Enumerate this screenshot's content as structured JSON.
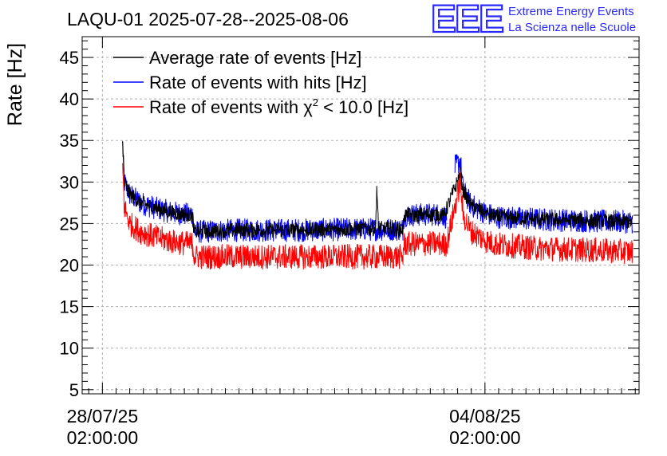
{
  "header": {
    "title": "LAQU-01 2025-07-28--2025-08-06",
    "logo_letters": "EEE",
    "logo_line1": "Extreme Energy Events",
    "logo_line2": "La Scienza nelle Scuole"
  },
  "colors": {
    "average": "#000000",
    "hits": "#0000ff",
    "chi2": "#ff0000",
    "grid": "#b0b0b0",
    "logo": "#2a2aff"
  },
  "chart_data": {
    "type": "line",
    "title": "LAQU-01 2025-07-28--2025-08-06",
    "xlabel": "",
    "ylabel": "Rate [Hz]",
    "x_unit": "days since 2025-07-28 02:00:00",
    "xlim": [
      -0.37,
      9.82
    ],
    "ylim": [
      4.5,
      47.5
    ],
    "yticks": [
      5,
      10,
      15,
      20,
      25,
      30,
      35,
      40,
      45
    ],
    "xticks": [
      {
        "x": 0,
        "line1": "28/07/25",
        "line2": "02:00:00"
      },
      {
        "x": 7,
        "line1": "04/08/25",
        "line2": "02:00:00"
      }
    ],
    "grid": true,
    "legend": {
      "position": "top-left",
      "entries": [
        {
          "key": "average",
          "label": "Average rate of events [Hz]"
        },
        {
          "key": "hits",
          "label": "Rate of events with hits [Hz]"
        },
        {
          "key": "chi2",
          "label_pre": "Rate of events with ",
          "label_symbol": "χ",
          "label_sup": "2",
          "label_post": " < 10.0 [Hz]"
        }
      ]
    },
    "series": [
      {
        "key": "hits",
        "name": "Rate of events with hits [Hz]",
        "x": [
          0.37,
          0.4,
          0.5,
          0.7,
          1.0,
          1.3,
          1.65,
          1.68,
          2.5,
          3.5,
          4.5,
          5.5,
          5.52,
          6.1,
          6.25,
          6.3,
          6.4,
          6.45,
          6.55,
          6.6,
          6.75,
          7.0,
          7.2,
          8.0,
          9.0,
          9.7
        ],
        "y": [
          34.5,
          30.0,
          28.5,
          27.5,
          26.8,
          26.3,
          26.0,
          24.0,
          24.2,
          24.2,
          24.3,
          24.3,
          26.0,
          26.1,
          26.0,
          25.6,
          null,
          31.8,
          32.6,
          29.0,
          27.2,
          26.3,
          25.8,
          25.5,
          25.3,
          25.2
        ],
        "noise": 1.4
      },
      {
        "key": "average",
        "name": "Average rate of events [Hz]",
        "x": [
          0.37,
          0.4,
          0.5,
          0.7,
          1.0,
          1.3,
          1.65,
          1.68,
          2.5,
          3.5,
          4.5,
          5.0,
          5.02,
          5.05,
          5.5,
          5.52,
          6.1,
          6.25,
          6.3,
          6.55,
          6.6,
          6.75,
          7.0,
          7.2,
          8.0,
          9.0,
          9.7
        ],
        "y": [
          34.5,
          30.0,
          28.5,
          27.5,
          26.8,
          26.3,
          26.0,
          24.0,
          24.2,
          24.2,
          24.3,
          24.4,
          29.5,
          24.4,
          24.3,
          26.0,
          26.1,
          26.0,
          26.8,
          31.0,
          29.0,
          27.2,
          26.3,
          25.8,
          25.5,
          25.3,
          25.2
        ],
        "noise": 0.9
      },
      {
        "key": "chi2",
        "name": "Rate of events with chi2 < 10.0 [Hz]",
        "x": [
          0.37,
          0.4,
          0.5,
          0.7,
          1.0,
          1.3,
          1.65,
          1.68,
          2.5,
          3.5,
          4.5,
          5.5,
          5.52,
          6.1,
          6.25,
          6.3,
          6.55,
          6.6,
          6.75,
          7.0,
          7.2,
          8.0,
          9.0,
          9.7
        ],
        "y": [
          32.0,
          27.0,
          25.0,
          24.0,
          23.3,
          22.8,
          22.5,
          21.0,
          21.0,
          21.0,
          21.0,
          21.0,
          22.5,
          22.6,
          22.5,
          22.5,
          30.0,
          26.0,
          24.0,
          23.0,
          22.5,
          22.0,
          21.8,
          21.6
        ],
        "noise": 1.5
      }
    ]
  }
}
